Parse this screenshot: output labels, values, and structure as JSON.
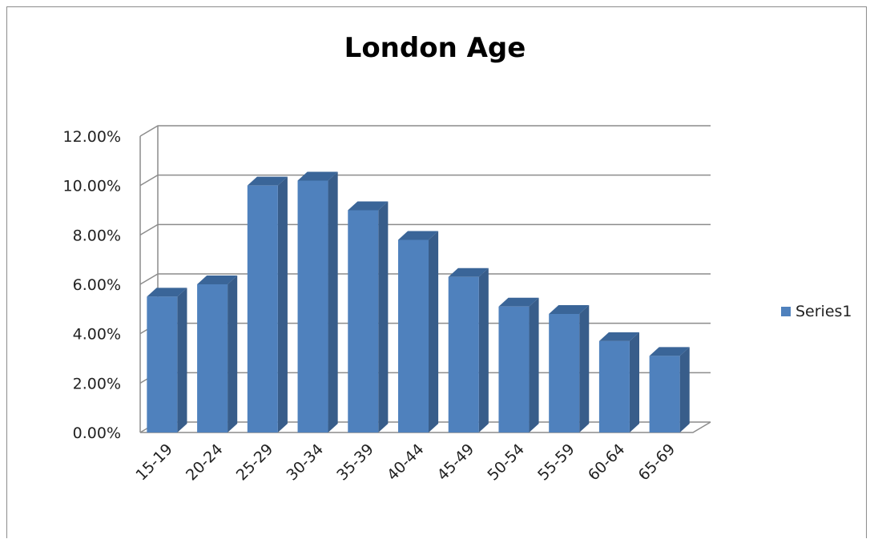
{
  "chart_data": {
    "type": "bar",
    "title": "London Age",
    "categories": [
      "15-19",
      "20-24",
      "25-29",
      "30-34",
      "35-39",
      "40-44",
      "45-49",
      "50-54",
      "55-59",
      "60-64",
      "65-69"
    ],
    "series": [
      {
        "name": "Series1",
        "values": [
          0.055,
          0.06,
          0.1,
          0.102,
          0.09,
          0.078,
          0.063,
          0.051,
          0.048,
          0.037,
          0.031
        ]
      }
    ],
    "ylim": [
      0,
      0.12
    ],
    "yticks": [
      "0.00%",
      "2.00%",
      "4.00%",
      "6.00%",
      "8.00%",
      "10.00%",
      "12.00%"
    ],
    "grid": true,
    "legend_position": "right",
    "style": "3d-column",
    "colors": {
      "front": "#4f81bd",
      "side": "#385d8a",
      "top": "#3a6598"
    }
  }
}
